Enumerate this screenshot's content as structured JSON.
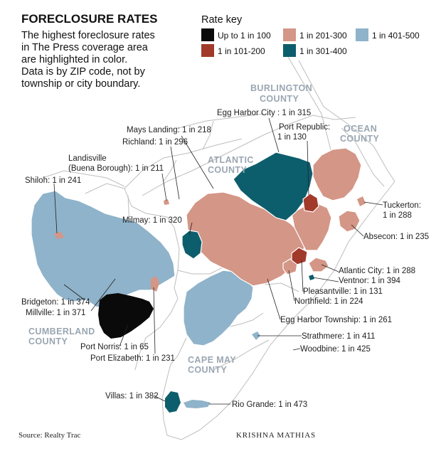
{
  "title": "FORECLOSURE RATES",
  "intro": [
    "The highest foreclosure rates",
    "in The Press coverage area",
    "are highlighted in color.",
    "Data is by ZIP code, not by",
    "township or city boundary."
  ],
  "key": {
    "heading": "Rate key",
    "items": [
      {
        "label": "Up to 1 in 100",
        "color": "#0a0a0a"
      },
      {
        "label": "1 in 101-200",
        "color": "#a23a2c"
      },
      {
        "label": "1 in 201-300",
        "color": "#d49686"
      },
      {
        "label": "1 in 301-400",
        "color": "#0d5e6c"
      },
      {
        "label": "1 in 401-500",
        "color": "#8fb3ca"
      }
    ]
  },
  "counties": {
    "burlington": [
      "BURLINGTON",
      "COUNTY"
    ],
    "ocean": [
      "OCEAN",
      "COUNTY"
    ],
    "atlantic": [
      "ATLANTIC",
      "COUNTY"
    ],
    "cumberland": [
      "CUMBERLAND",
      "COUNTY"
    ],
    "cape_may": [
      "CAPE MAY",
      "COUNTY"
    ]
  },
  "places": {
    "egg_harbor_city": "Egg Harbor City : 1 in 315",
    "port_republic": [
      "Port Republic:",
      "1 in 130"
    ],
    "mays_landing": "Mays Landing: 1 in 218",
    "richland": "Richland: 1 in 296",
    "landisville": [
      "Landisville",
      "(Buena Borough): 1 in 211"
    ],
    "shiloh": "Shiloh: 1 in 241",
    "tuckerton": [
      "Tuckerton:",
      "1 in 288"
    ],
    "milmay": "Milmay: 1 in 320",
    "absecon": "Absecon: 1 in 235",
    "atlantic_city": "Atlantic City: 1 in 288",
    "ventnor": "Ventnor: 1 in 394",
    "pleasantville": "Pleasantville: 1 in 131",
    "northfield": "Northfield: 1 in 224",
    "bridgeton": "Bridgeton: 1 in 374",
    "millville": "Millville: 1 in 371",
    "egg_harbor_township": "Egg Harbor Township: 1 in 261",
    "strathmere": "Strathmere: 1 in 411",
    "port_norris": "Port Norris: 1 in 65",
    "woodbine": "Woodbine: 1 in 425",
    "port_elizabeth": "Port Elizabeth: 1 in 231",
    "villas": "Villas: 1 in 382",
    "rio_grande": "Rio Grande: 1 in 473"
  },
  "source": "Source: Realty Trac",
  "credit": "KRISHNA MATHIAS"
}
